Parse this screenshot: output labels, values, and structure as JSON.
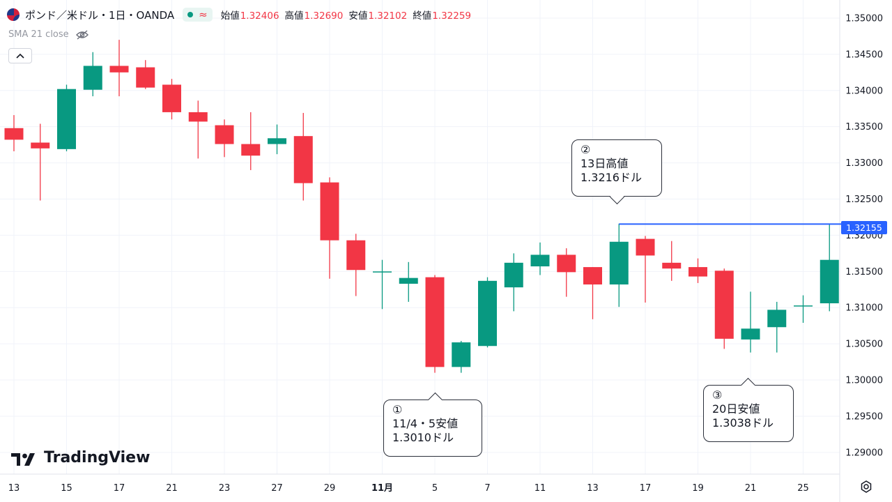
{
  "header": {
    "symbol_title": "ポンド／米ドル・1日・OANDA",
    "open_label": "始値",
    "open_value": "1.32406",
    "high_label": "高値",
    "high_value": "1.32690",
    "low_label": "安値",
    "low_value": "1.32102",
    "close_label": "終値",
    "close_value": "1.32259",
    "flag_icon": "uk-flag-icon",
    "market_status_icon": "market-open-dot-icon",
    "wave_icon": "approx-wave-icon"
  },
  "indicator": {
    "label": "SMA 21 close",
    "icon": "eye-hidden-icon"
  },
  "collapse_icon": "chevron-up-icon",
  "brand": {
    "name": "TradingView",
    "icon": "tv-logo-icon"
  },
  "settings_icon": "gear-icon",
  "colors": {
    "up": "#089981",
    "down": "#f23645",
    "line": "#2962ff",
    "grid": "#f0f3fa",
    "axis_text": "#131722"
  },
  "price_tag": "1.32155",
  "callouts": [
    {
      "id": "c1",
      "num": "①",
      "line1": "11/4・5安値",
      "line2": "1.3010ドル"
    },
    {
      "id": "c2",
      "num": "②",
      "line1": "13日高値",
      "line2": "1.3216ドル"
    },
    {
      "id": "c3",
      "num": "③",
      "line1": "20日安値",
      "line2": "1.3038ドル"
    }
  ],
  "chart_data": {
    "type": "candlestick",
    "title": "ポンド／米ドル・1日・OANDA",
    "y_ticks": [
      "1.35000",
      "1.34500",
      "1.34000",
      "1.33500",
      "1.33000",
      "1.32500",
      "1.32000",
      "1.31500",
      "1.31000",
      "1.30500",
      "1.30000",
      "1.29500",
      "1.29000"
    ],
    "ylim": [
      1.287,
      1.3525
    ],
    "x_ticks": [
      "13",
      "15",
      "17",
      "21",
      "23",
      "27",
      "29",
      "11月",
      "5",
      "7",
      "11",
      "13",
      "17",
      "19",
      "21",
      "25"
    ],
    "horizontal_line": 1.32155,
    "candles": [
      {
        "o": 1.3348,
        "h": 1.3366,
        "l": 1.3316,
        "c": 1.3332
      },
      {
        "o": 1.3328,
        "h": 1.3354,
        "l": 1.3248,
        "c": 1.332
      },
      {
        "o": 1.3319,
        "h": 1.3408,
        "l": 1.3316,
        "c": 1.3402
      },
      {
        "o": 1.3401,
        "h": 1.3453,
        "l": 1.3392,
        "c": 1.3434
      },
      {
        "o": 1.3434,
        "h": 1.347,
        "l": 1.3392,
        "c": 1.3425
      },
      {
        "o": 1.3432,
        "h": 1.3442,
        "l": 1.3402,
        "c": 1.3404
      },
      {
        "o": 1.3408,
        "h": 1.3416,
        "l": 1.336,
        "c": 1.337
      },
      {
        "o": 1.337,
        "h": 1.3386,
        "l": 1.3306,
        "c": 1.3357
      },
      {
        "o": 1.3352,
        "h": 1.336,
        "l": 1.3308,
        "c": 1.3326
      },
      {
        "o": 1.3326,
        "h": 1.337,
        "l": 1.329,
        "c": 1.331
      },
      {
        "o": 1.3326,
        "h": 1.3353,
        "l": 1.3312,
        "c": 1.3334
      },
      {
        "o": 1.3337,
        "h": 1.3369,
        "l": 1.3248,
        "c": 1.3272
      },
      {
        "o": 1.3273,
        "h": 1.328,
        "l": 1.314,
        "c": 1.3193
      },
      {
        "o": 1.3193,
        "h": 1.3202,
        "l": 1.3116,
        "c": 1.3152
      },
      {
        "o": 1.315,
        "h": 1.3166,
        "l": 1.3098,
        "c": 1.315
      },
      {
        "o": 1.3133,
        "h": 1.3163,
        "l": 1.3108,
        "c": 1.3141
      },
      {
        "o": 1.3142,
        "h": 1.3145,
        "l": 1.301,
        "c": 1.3018
      },
      {
        "o": 1.3018,
        "h": 1.3054,
        "l": 1.301,
        "c": 1.3052
      },
      {
        "o": 1.3047,
        "h": 1.3142,
        "l": 1.3045,
        "c": 1.3137
      },
      {
        "o": 1.3128,
        "h": 1.3175,
        "l": 1.3095,
        "c": 1.3162
      },
      {
        "o": 1.3157,
        "h": 1.319,
        "l": 1.3145,
        "c": 1.3173
      },
      {
        "o": 1.3173,
        "h": 1.3182,
        "l": 1.3115,
        "c": 1.3149
      },
      {
        "o": 1.3156,
        "h": 1.3156,
        "l": 1.3084,
        "c": 1.3132
      },
      {
        "o": 1.3132,
        "h": 1.3216,
        "l": 1.3101,
        "c": 1.3191
      },
      {
        "o": 1.3195,
        "h": 1.3199,
        "l": 1.3107,
        "c": 1.3172
      },
      {
        "o": 1.3162,
        "h": 1.3192,
        "l": 1.3137,
        "c": 1.3154
      },
      {
        "o": 1.3156,
        "h": 1.3168,
        "l": 1.3134,
        "c": 1.3143
      },
      {
        "o": 1.3151,
        "h": 1.3154,
        "l": 1.3043,
        "c": 1.3057
      },
      {
        "o": 1.3056,
        "h": 1.3122,
        "l": 1.3038,
        "c": 1.3071
      },
      {
        "o": 1.3073,
        "h": 1.3108,
        "l": 1.3038,
        "c": 1.3097
      },
      {
        "o": 1.3102,
        "h": 1.3117,
        "l": 1.3079,
        "c": 1.3103
      },
      {
        "o": 1.3106,
        "h": 1.3215,
        "l": 1.3095,
        "c": 1.3166
      }
    ]
  }
}
